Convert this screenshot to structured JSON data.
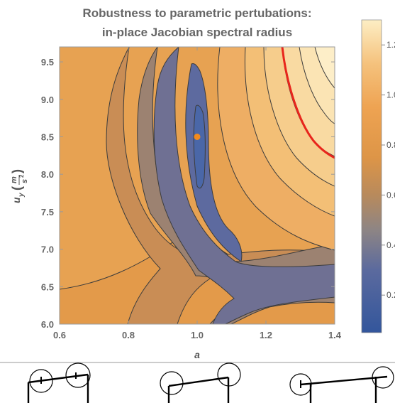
{
  "chart_data": {
    "type": "heatmap",
    "subtype": "contour",
    "title": "Robustness to parametric pertubations:",
    "subtitle": "in-place Jacobian spectral radius",
    "xlabel": "a",
    "ylabel_main": "u",
    "ylabel_sub": "y",
    "ylabel_unit_num": "m",
    "ylabel_unit_den": "s",
    "ylabel_unit_exp": "2",
    "xlim": [
      0.6,
      1.4
    ],
    "ylim": [
      6.0,
      9.7
    ],
    "xticks": [
      "0.6",
      "0.8",
      "1.0",
      "1.2",
      "1.4"
    ],
    "yticks": [
      "6.0",
      "6.5",
      "7.0",
      "7.5",
      "8.0",
      "8.5",
      "9.0",
      "9.5"
    ],
    "colorbar_range": [
      0.05,
      1.3
    ],
    "colorbar_ticks": [
      "0.2",
      "0.4",
      "0.6",
      "0.8",
      "1.0",
      "1.2"
    ],
    "contour_step": 0.1,
    "optimum_point": {
      "a": 1.0,
      "u_y": 8.5
    },
    "critical_contour": {
      "level": 1.0,
      "color": "#e8251c"
    },
    "marker_color": "#f28a1d"
  }
}
